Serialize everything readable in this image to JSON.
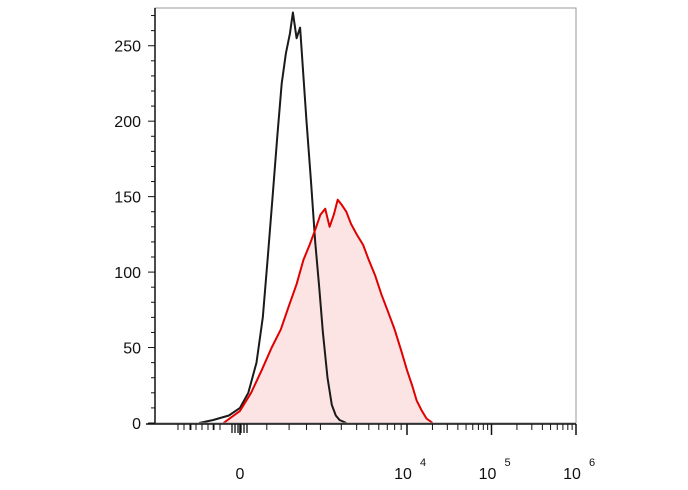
{
  "chart_data": {
    "type": "line",
    "title": "",
    "xlabel": "",
    "ylabel": "",
    "x_scale": "biexponential",
    "xlim": [
      -1500,
      1000000
    ],
    "ylim": [
      0,
      275
    ],
    "grid": false,
    "legend": "none",
    "y_ticks": [
      {
        "value": 0,
        "label": "0"
      },
      {
        "value": 50,
        "label": "50"
      },
      {
        "value": 100,
        "label": "100"
      },
      {
        "value": 150,
        "label": "150"
      },
      {
        "value": 200,
        "label": "200"
      },
      {
        "value": 250,
        "label": "250"
      }
    ],
    "x_ticks": [
      {
        "value": 0,
        "base": "0",
        "exp": ""
      },
      {
        "value": 10000,
        "base": "10",
        "exp": "4"
      },
      {
        "value": 100000,
        "base": "10",
        "exp": "5"
      },
      {
        "value": 1000000,
        "base": "10",
        "exp": "6"
      }
    ],
    "series": [
      {
        "color": "#1a1a1a",
        "fill": "none",
        "x": [
          -800,
          -500,
          -200,
          0,
          150,
          300,
          420,
          520,
          620,
          720,
          820,
          920,
          1020,
          1100,
          1200,
          1300,
          1400,
          1500,
          1650,
          1800,
          1950,
          2100,
          2300,
          2500,
          2700,
          2900,
          3100,
          3300
        ],
        "y": [
          0,
          2,
          5,
          10,
          20,
          40,
          70,
          110,
          150,
          190,
          225,
          245,
          258,
          272,
          255,
          262,
          230,
          200,
          160,
          120,
          90,
          60,
          30,
          12,
          5,
          2,
          1,
          0
        ]
      },
      {
        "color": "#e00000",
        "fill": "#fde4e4",
        "x": [
          -300,
          0,
          200,
          400,
          600,
          800,
          1000,
          1200,
          1400,
          1600,
          1800,
          2000,
          2200,
          2400,
          2600,
          2800,
          3000,
          3300,
          3600,
          4000,
          4500,
          5000,
          5600,
          6300,
          7000,
          8000,
          9000,
          10000,
          11500,
          13000,
          15000,
          17000,
          19000,
          20000
        ],
        "y": [
          0,
          8,
          20,
          35,
          50,
          62,
          78,
          92,
          108,
          118,
          128,
          138,
          142,
          130,
          138,
          148,
          145,
          140,
          132,
          125,
          118,
          108,
          98,
          85,
          75,
          62,
          48,
          35,
          25,
          15,
          8,
          3,
          1,
          0
        ]
      }
    ]
  }
}
